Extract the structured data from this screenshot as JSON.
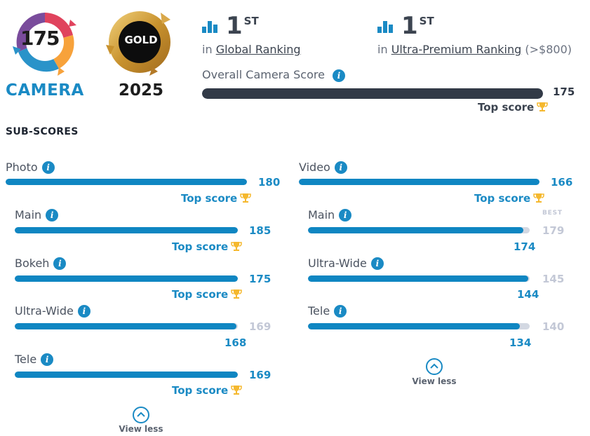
{
  "badges": {
    "camera_score": "175",
    "camera_label": "CAMERA",
    "gold_label": "GOLD",
    "year": "2025"
  },
  "rankings": [
    {
      "rank": "1",
      "suffix": "ST",
      "prefix": "in",
      "link": "Global Ranking",
      "extra": ""
    },
    {
      "rank": "1",
      "suffix": "ST",
      "prefix": "in",
      "link": "Ultra-Premium Ranking",
      "extra": "(>$800)"
    }
  ],
  "overall": {
    "label": "Overall Camera Score",
    "value": "175",
    "fill_fraction": 1.0,
    "top_label": "Top score"
  },
  "subscores_title": "SUB-SCORES",
  "photo": {
    "label": "Photo",
    "value": "180",
    "fill_fraction": 1.0,
    "top_label": "Top score",
    "items": [
      {
        "label": "Main",
        "value": "185",
        "fill_fraction": 1.0,
        "top_label": "Top score"
      },
      {
        "label": "Bokeh",
        "value": "175",
        "fill_fraction": 1.0,
        "top_label": "Top score"
      },
      {
        "label": "Ultra-Wide",
        "value": "168",
        "best": "169",
        "fill_fraction": 0.994,
        "best_fraction": 1.0
      },
      {
        "label": "Tele",
        "value": "169",
        "fill_fraction": 1.0,
        "top_label": "Top score"
      }
    ],
    "view_less": "View less"
  },
  "video": {
    "label": "Video",
    "value": "166",
    "fill_fraction": 1.0,
    "top_label": "Top score",
    "items": [
      {
        "label": "Main",
        "value": "174",
        "best": "179",
        "best_tag": "BEST",
        "fill_fraction": 0.972,
        "best_fraction": 1.0
      },
      {
        "label": "Ultra-Wide",
        "value": "144",
        "best": "145",
        "fill_fraction": 0.993,
        "best_fraction": 1.0
      },
      {
        "label": "Tele",
        "value": "134",
        "best": "140",
        "fill_fraction": 0.957,
        "best_fraction": 1.0
      }
    ],
    "view_less": "View less"
  },
  "colors": {
    "accent": "#1a8ac4",
    "bar_fill": "#0f86c2",
    "overall_bar": "#323a47",
    "trophy": "#f5b82e",
    "best_gray": "#c3c8d6"
  },
  "icons": [
    "ranking-bars-icon",
    "info-icon",
    "trophy-icon",
    "chevron-up-icon",
    "camera-score-badge",
    "gold-badge"
  ]
}
